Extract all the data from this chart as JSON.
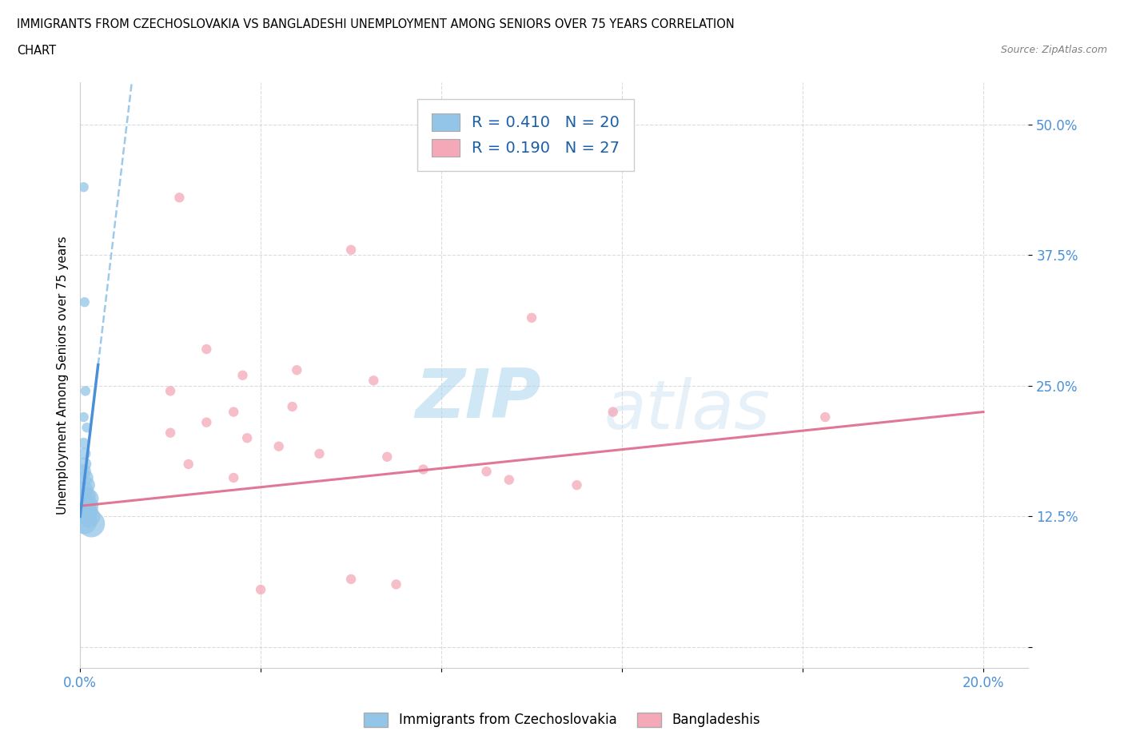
{
  "title_line1": "IMMIGRANTS FROM CZECHOSLOVAKIA VS BANGLADESHI UNEMPLOYMENT AMONG SENIORS OVER 75 YEARS CORRELATION",
  "title_line2": "CHART",
  "source": "Source: ZipAtlas.com",
  "ylabel": "Unemployment Among Seniors over 75 years",
  "xlim": [
    0.0,
    0.21
  ],
  "ylim": [
    -0.02,
    0.54
  ],
  "x_ticks": [
    0.0,
    0.04,
    0.08,
    0.12,
    0.16,
    0.2
  ],
  "x_tick_labels": [
    "0.0%",
    "",
    "",
    "",
    "",
    "20.0%"
  ],
  "y_ticks": [
    0.0,
    0.125,
    0.25,
    0.375,
    0.5
  ],
  "y_tick_labels": [
    "",
    "12.5%",
    "25.0%",
    "37.5%",
    "50.0%"
  ],
  "czechoslovakia_color": "#93C5E8",
  "czechoslovakia_line_color": "#4a90d9",
  "bangladeshi_color": "#F4A8B8",
  "bangladeshi_line_color": "#e07090",
  "czechoslovakia_R": 0.41,
  "czechoslovakia_N": 20,
  "bangladeshi_R": 0.19,
  "bangladeshi_N": 27,
  "legend_R_color": "#1a5fa8",
  "watermark_zip": "ZIP",
  "watermark_atlas": "atlas",
  "background_color": "#ffffff",
  "grid_color": "#cccccc",
  "axis_label_color": "#4a90d9",
  "czechoslovakia_points": [
    [
      0.0008,
      0.44
    ],
    [
      0.001,
      0.33
    ],
    [
      0.0012,
      0.245
    ],
    [
      0.0008,
      0.22
    ],
    [
      0.0015,
      0.21
    ],
    [
      0.0008,
      0.195
    ],
    [
      0.001,
      0.185
    ],
    [
      0.001,
      0.175
    ],
    [
      0.0008,
      0.168
    ],
    [
      0.0012,
      0.162
    ],
    [
      0.0015,
      0.155
    ],
    [
      0.001,
      0.15
    ],
    [
      0.0015,
      0.145
    ],
    [
      0.002,
      0.142
    ],
    [
      0.0012,
      0.138
    ],
    [
      0.0018,
      0.135
    ],
    [
      0.0015,
      0.13
    ],
    [
      0.002,
      0.125
    ],
    [
      0.001,
      0.12
    ],
    [
      0.0025,
      0.118
    ]
  ],
  "czechoslovakia_sizes": [
    80,
    80,
    80,
    80,
    80,
    100,
    120,
    150,
    180,
    200,
    220,
    240,
    260,
    300,
    320,
    340,
    360,
    400,
    500,
    600
  ],
  "bangladeshi_points": [
    [
      0.022,
      0.43
    ],
    [
      0.06,
      0.38
    ],
    [
      0.1,
      0.315
    ],
    [
      0.028,
      0.285
    ],
    [
      0.048,
      0.265
    ],
    [
      0.036,
      0.26
    ],
    [
      0.065,
      0.255
    ],
    [
      0.02,
      0.245
    ],
    [
      0.047,
      0.23
    ],
    [
      0.034,
      0.225
    ],
    [
      0.118,
      0.225
    ],
    [
      0.028,
      0.215
    ],
    [
      0.02,
      0.205
    ],
    [
      0.037,
      0.2
    ],
    [
      0.044,
      0.192
    ],
    [
      0.053,
      0.185
    ],
    [
      0.068,
      0.182
    ],
    [
      0.024,
      0.175
    ],
    [
      0.076,
      0.17
    ],
    [
      0.09,
      0.168
    ],
    [
      0.034,
      0.162
    ],
    [
      0.095,
      0.16
    ],
    [
      0.11,
      0.155
    ],
    [
      0.165,
      0.22
    ],
    [
      0.06,
      0.065
    ],
    [
      0.07,
      0.06
    ],
    [
      0.04,
      0.055
    ]
  ],
  "bangladeshi_sizes": [
    80,
    80,
    80,
    80,
    80,
    80,
    80,
    80,
    80,
    80,
    80,
    80,
    80,
    80,
    80,
    80,
    80,
    80,
    80,
    80,
    80,
    80,
    80,
    80,
    80,
    80,
    80
  ]
}
